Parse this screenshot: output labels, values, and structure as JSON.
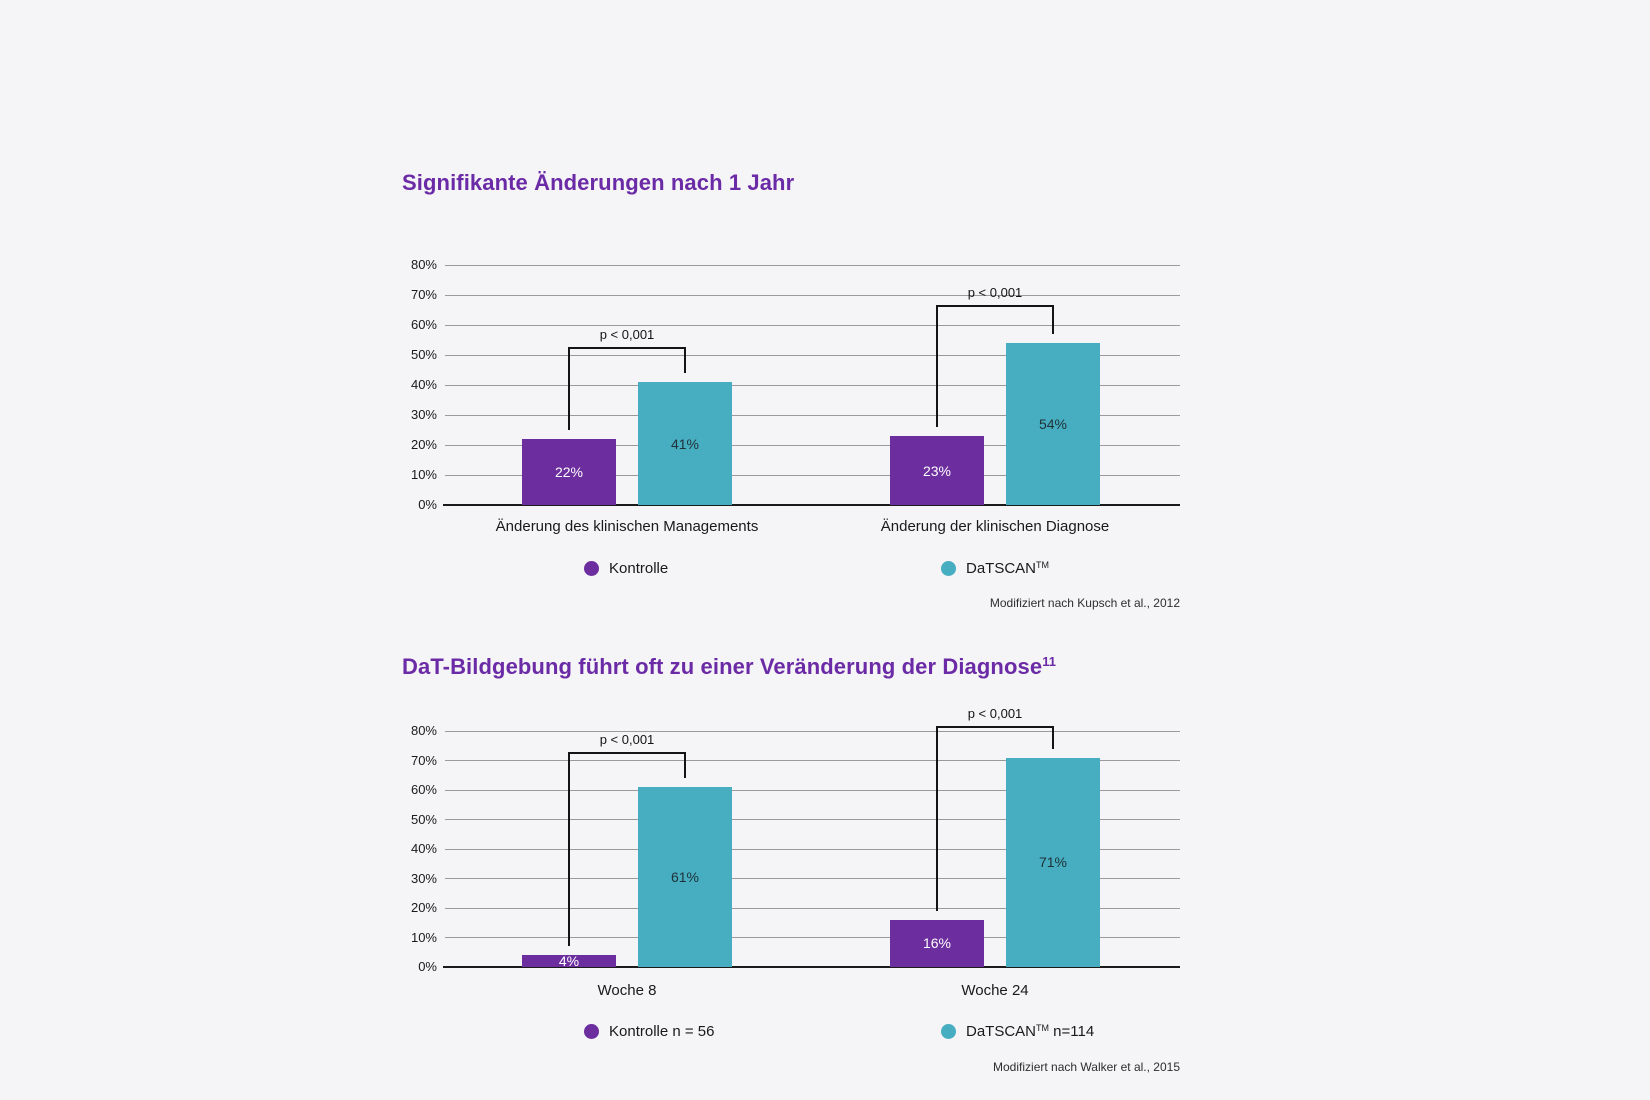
{
  "colors": {
    "background": "#f5f4f6",
    "purple": "#6c2d9e",
    "teal": "#47aec2",
    "title": "#6b2ba6",
    "grid": "#9c9a9c",
    "axis": "#1b1b1b",
    "bracket": "#141414",
    "text": "#1a1a1a",
    "bar_label_on_purple": "#ffffff",
    "bar_label_on_teal": "#203238",
    "source_text": "#2e2e2e"
  },
  "chart_data": [
    {
      "type": "bar",
      "title": "Signifikante Änderungen nach 1 Jahr",
      "title_sup": "",
      "categories": [
        "Änderung des klinischen Managements",
        "Änderung der klinischen Diagnose"
      ],
      "series": [
        {
          "name": "Kontrolle",
          "color_key": "purple",
          "label_color_key": "bar_label_on_purple",
          "values": [
            22,
            23
          ]
        },
        {
          "name": "DaTSCAN™",
          "color_key": "teal",
          "label_color_key": "bar_label_on_teal",
          "values": [
            41,
            54
          ]
        }
      ],
      "ylim": [
        0,
        80
      ],
      "yticks": [
        "0%",
        "10%",
        "20%",
        "30%",
        "40%",
        "50%",
        "60%",
        "70%",
        "80%"
      ],
      "grid": true,
      "legend_position": "bottom",
      "annotations": [
        {
          "label": "p < 0,001",
          "group_index": 0,
          "between": [
            "Kontrolle",
            "DaTSCAN™"
          ]
        },
        {
          "label": "p < 0,001",
          "group_index": 1,
          "between": [
            "Kontrolle",
            "DaTSCAN™"
          ]
        }
      ],
      "legend_display": [
        {
          "pre": "Kontrolle",
          "tm": "",
          "post": ""
        },
        {
          "pre": "DaTSCAN",
          "tm": "TM",
          "post": ""
        }
      ],
      "source": "Modifiziert nach Kupsch et al., 2012"
    },
    {
      "type": "bar",
      "title": "DaT-Bildgebung führt oft zu einer Veränderung der Diagnose",
      "title_sup": "11",
      "categories": [
        "Woche 8",
        "Woche 24"
      ],
      "series": [
        {
          "name": "Kontrolle n = 56",
          "color_key": "purple",
          "label_color_key": "bar_label_on_purple",
          "values": [
            4,
            16
          ]
        },
        {
          "name": "DaTSCAN™ n=114",
          "color_key": "teal",
          "label_color_key": "bar_label_on_teal",
          "values": [
            61,
            71
          ]
        }
      ],
      "ylim": [
        0,
        80
      ],
      "yticks": [
        "0%",
        "10%",
        "20%",
        "30%",
        "40%",
        "50%",
        "60%",
        "70%",
        "80%"
      ],
      "grid": true,
      "legend_position": "bottom",
      "annotations": [
        {
          "label": "p < 0,001",
          "group_index": 0,
          "between": [
            "Kontrolle n = 56",
            "DaTSCAN™ n=114"
          ]
        },
        {
          "label": "p < 0,001",
          "group_index": 1,
          "between": [
            "Kontrolle n = 56",
            "DaTSCAN™ n=114"
          ]
        }
      ],
      "legend_display": [
        {
          "pre": "Kontrolle n = 56",
          "tm": "",
          "post": ""
        },
        {
          "pre": "DaTSCAN",
          "tm": "TM",
          "post": " n=114"
        }
      ],
      "source": "Modifiziert nach Walker et al., 2015"
    }
  ]
}
